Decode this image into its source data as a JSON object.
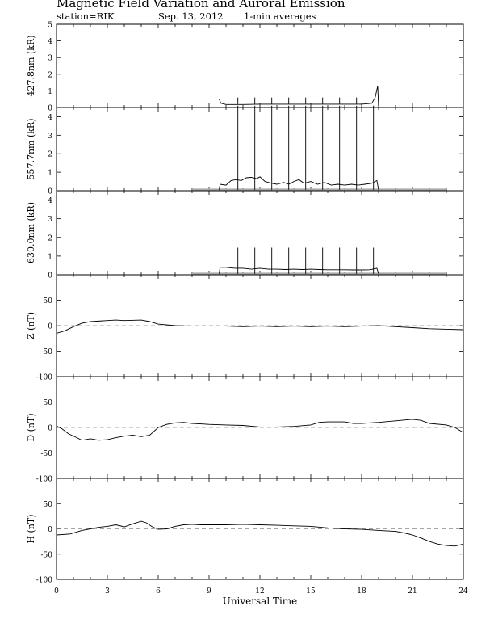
{
  "header": {
    "title": "Magnetic Field Variation and Auroral Emission",
    "station": "station=RIK",
    "date": "Sep. 13, 2012",
    "averaging": "1-min averages"
  },
  "chart_data": [
    {
      "type": "line",
      "ylabel": "427.8nm (kR)",
      "ylim": [
        0,
        5
      ],
      "yticks": [
        0,
        1,
        2,
        3,
        4,
        5
      ],
      "series": [
        {
          "points": [
            [
              9.6,
              0.5
            ],
            [
              9.7,
              0.25
            ],
            [
              10,
              0.18
            ],
            [
              11,
              0.18
            ],
            [
              12,
              0.2
            ],
            [
              13,
              0.2
            ],
            [
              14,
              0.2
            ],
            [
              15,
              0.2
            ],
            [
              16,
              0.2
            ],
            [
              17,
              0.2
            ],
            [
              18,
              0.2
            ],
            [
              18.6,
              0.25
            ],
            [
              18.8,
              0.6
            ],
            [
              18.95,
              1.3
            ],
            [
              19.0,
              0.0
            ]
          ]
        }
      ],
      "spikes": {
        "times": [
          10.7,
          11.7,
          12.7,
          13.7,
          14.7,
          15.7,
          16.7,
          17.7
        ],
        "from": 0.2,
        "to": 0.6
      }
    },
    {
      "type": "line",
      "ylabel": "557.7nm (kR)",
      "ylim": [
        0,
        4.5
      ],
      "yticks": [
        0,
        1,
        2,
        3,
        4
      ],
      "baseline": {
        "from": 8.0,
        "to": 23.0,
        "value": 0.05
      },
      "series": [
        {
          "points": [
            [
              9.6,
              0.05
            ],
            [
              9.65,
              0.35
            ],
            [
              10.0,
              0.3
            ],
            [
              10.3,
              0.55
            ],
            [
              10.6,
              0.6
            ],
            [
              10.9,
              0.55
            ],
            [
              11.2,
              0.7
            ],
            [
              11.5,
              0.72
            ],
            [
              11.8,
              0.65
            ],
            [
              12.0,
              0.75
            ],
            [
              12.3,
              0.5
            ],
            [
              12.7,
              0.4
            ],
            [
              13.0,
              0.35
            ],
            [
              13.4,
              0.45
            ],
            [
              13.7,
              0.35
            ],
            [
              14.0,
              0.5
            ],
            [
              14.3,
              0.6
            ],
            [
              14.6,
              0.4
            ],
            [
              15.0,
              0.5
            ],
            [
              15.4,
              0.35
            ],
            [
              15.8,
              0.45
            ],
            [
              16.2,
              0.3
            ],
            [
              16.6,
              0.35
            ],
            [
              17.0,
              0.3
            ],
            [
              17.4,
              0.35
            ],
            [
              17.8,
              0.3
            ],
            [
              18.2,
              0.35
            ],
            [
              18.6,
              0.4
            ],
            [
              18.9,
              0.55
            ],
            [
              19.0,
              0.05
            ]
          ]
        }
      ],
      "spikes": {
        "times": [
          10.7,
          11.7,
          12.7,
          13.7,
          14.7,
          15.7,
          16.7,
          17.7,
          18.7
        ],
        "from": 0.05,
        "to": 4.6
      }
    },
    {
      "type": "line",
      "ylabel": "630.0nm (kR)",
      "ylim": [
        0,
        4.5
      ],
      "yticks": [
        0,
        1,
        2,
        3,
        4
      ],
      "baseline": {
        "from": 8.0,
        "to": 23.0,
        "value": 0.05
      },
      "series": [
        {
          "points": [
            [
              9.6,
              0.05
            ],
            [
              9.65,
              0.4
            ],
            [
              10.0,
              0.4
            ],
            [
              10.5,
              0.35
            ],
            [
              11.0,
              0.35
            ],
            [
              11.5,
              0.3
            ],
            [
              12.0,
              0.35
            ],
            [
              12.5,
              0.3
            ],
            [
              13.0,
              0.3
            ],
            [
              13.5,
              0.28
            ],
            [
              14.0,
              0.3
            ],
            [
              14.5,
              0.28
            ],
            [
              15.0,
              0.3
            ],
            [
              15.5,
              0.28
            ],
            [
              16.0,
              0.27
            ],
            [
              16.5,
              0.27
            ],
            [
              17.0,
              0.27
            ],
            [
              17.5,
              0.26
            ],
            [
              18.0,
              0.26
            ],
            [
              18.5,
              0.27
            ],
            [
              18.9,
              0.35
            ],
            [
              19.0,
              0.05
            ]
          ]
        }
      ],
      "spikes": {
        "times": [
          10.7,
          11.7,
          12.7,
          13.7,
          14.7,
          15.7,
          16.7,
          17.7,
          18.7
        ],
        "from": 0.05,
        "to": 1.45
      }
    },
    {
      "type": "line",
      "ylabel": "Z (nT)",
      "ylim": [
        -100,
        100
      ],
      "yticks": [
        -100,
        -50,
        0,
        50
      ],
      "zero_line": true,
      "series": [
        {
          "points": [
            [
              0,
              -15
            ],
            [
              0.5,
              -10
            ],
            [
              1.0,
              -2
            ],
            [
              1.5,
              5
            ],
            [
              2.0,
              8
            ],
            [
              3.0,
              10
            ],
            [
              3.5,
              11
            ],
            [
              4.0,
              10
            ],
            [
              5.0,
              11
            ],
            [
              5.5,
              8
            ],
            [
              6.0,
              3
            ],
            [
              7.0,
              0
            ],
            [
              8.0,
              -1
            ],
            [
              9.0,
              -1
            ],
            [
              10.0,
              -1
            ],
            [
              11.0,
              -2
            ],
            [
              12.0,
              -1
            ],
            [
              13.0,
              -2
            ],
            [
              14.0,
              -1
            ],
            [
              15.0,
              -2
            ],
            [
              16.0,
              -1
            ],
            [
              17.0,
              -2
            ],
            [
              18.0,
              -1
            ],
            [
              19.0,
              0
            ],
            [
              20.0,
              -2
            ],
            [
              21.0,
              -4
            ],
            [
              22.0,
              -6
            ],
            [
              23.0,
              -7
            ],
            [
              24.0,
              -8
            ]
          ]
        }
      ]
    },
    {
      "type": "line",
      "ylabel": "D (nT)",
      "ylim": [
        -100,
        100
      ],
      "yticks": [
        -100,
        -50,
        0,
        50
      ],
      "zero_line": true,
      "series": [
        {
          "points": [
            [
              0,
              3
            ],
            [
              0.3,
              -2
            ],
            [
              0.7,
              -12
            ],
            [
              1.2,
              -20
            ],
            [
              1.5,
              -25
            ],
            [
              2.0,
              -22
            ],
            [
              2.5,
              -25
            ],
            [
              3.0,
              -24
            ],
            [
              3.5,
              -20
            ],
            [
              4.0,
              -17
            ],
            [
              4.5,
              -15
            ],
            [
              5.0,
              -18
            ],
            [
              5.5,
              -15
            ],
            [
              6.0,
              0
            ],
            [
              6.5,
              6
            ],
            [
              7.0,
              9
            ],
            [
              7.5,
              10
            ],
            [
              8.0,
              8
            ],
            [
              9.0,
              6
            ],
            [
              10.0,
              5
            ],
            [
              11.0,
              4
            ],
            [
              12.0,
              1
            ],
            [
              13.0,
              1
            ],
            [
              14.0,
              2
            ],
            [
              15.0,
              5
            ],
            [
              15.5,
              10
            ],
            [
              16.0,
              11
            ],
            [
              17.0,
              11
            ],
            [
              17.5,
              8
            ],
            [
              18.0,
              8
            ],
            [
              19.0,
              10
            ],
            [
              20.0,
              13
            ],
            [
              21.0,
              16
            ],
            [
              21.5,
              14
            ],
            [
              22.0,
              8
            ],
            [
              23.0,
              5
            ],
            [
              23.5,
              0
            ],
            [
              24.0,
              -10
            ]
          ]
        }
      ]
    },
    {
      "type": "line",
      "ylabel": "H (nT)",
      "ylim": [
        -100,
        100
      ],
      "yticks": [
        -100,
        -50,
        0,
        50
      ],
      "zero_line": true,
      "series": [
        {
          "points": [
            [
              0,
              -12
            ],
            [
              0.8,
              -10
            ],
            [
              1.5,
              -3
            ],
            [
              2.0,
              0
            ],
            [
              2.5,
              3
            ],
            [
              3.0,
              5
            ],
            [
              3.5,
              8
            ],
            [
              4.0,
              4
            ],
            [
              4.5,
              10
            ],
            [
              5.0,
              15
            ],
            [
              5.3,
              12
            ],
            [
              5.6,
              5
            ],
            [
              6.0,
              -1
            ],
            [
              6.5,
              0
            ],
            [
              7.0,
              5
            ],
            [
              7.5,
              8
            ],
            [
              8.0,
              9
            ],
            [
              8.5,
              8
            ],
            [
              9.0,
              8
            ],
            [
              10.0,
              8
            ],
            [
              11.0,
              9
            ],
            [
              12.0,
              8
            ],
            [
              13.0,
              7
            ],
            [
              14.0,
              6
            ],
            [
              15.0,
              5
            ],
            [
              16.0,
              2
            ],
            [
              17.0,
              0
            ],
            [
              18.0,
              -1
            ],
            [
              19.0,
              -3
            ],
            [
              20.0,
              -5
            ],
            [
              20.5,
              -8
            ],
            [
              21.0,
              -12
            ],
            [
              21.5,
              -18
            ],
            [
              22.0,
              -25
            ],
            [
              22.5,
              -30
            ],
            [
              23.0,
              -33
            ],
            [
              23.5,
              -34
            ],
            [
              24.0,
              -30
            ]
          ]
        }
      ]
    }
  ],
  "x_axis": {
    "label": "Universal Time",
    "range": [
      0,
      24
    ],
    "ticks": [
      "0",
      "3",
      "6",
      "9",
      "12",
      "15",
      "18",
      "21",
      "24"
    ]
  }
}
